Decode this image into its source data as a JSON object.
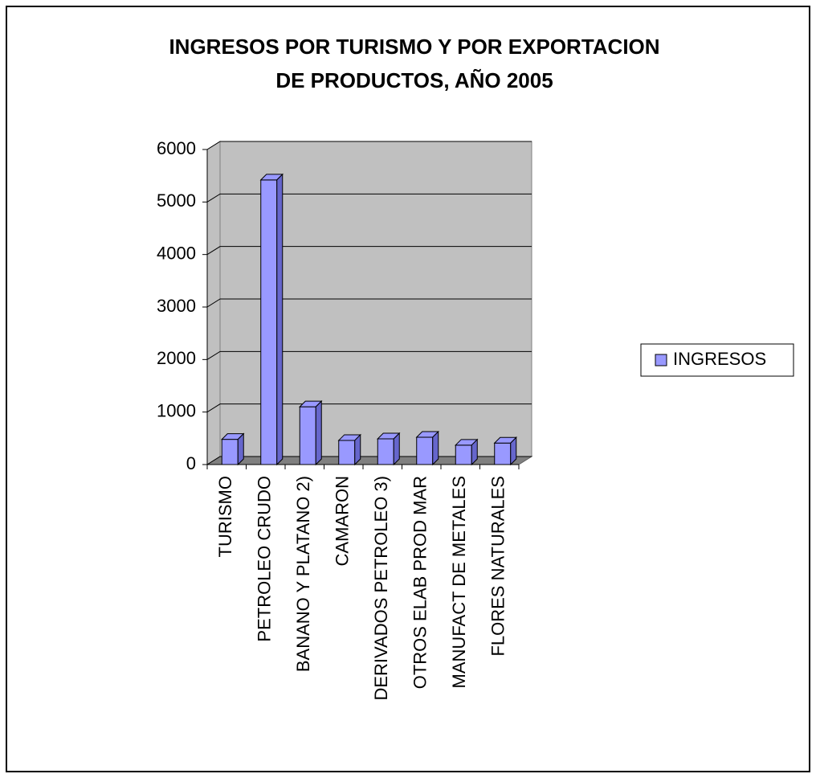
{
  "chart_data": {
    "type": "bar3d",
    "title": [
      "INGRESOS POR TURISMO Y POR EXPORTACION",
      "DE PRODUCTOS, AÑO 2005"
    ],
    "categories": [
      "TURISMO",
      "PETROLEO CRUDO",
      "BANANO Y PLATANO 2)",
      "CAMARON",
      "DERIVADOS PETROLEO 3)",
      "OTROS ELAB PROD MAR",
      "MANUFACT DE METALES",
      "FLORES NATURALES"
    ],
    "series": [
      {
        "name": "INGRESOS",
        "color": "#9999ff",
        "values": [
          480,
          5420,
          1100,
          460,
          490,
          520,
          370,
          410
        ]
      }
    ],
    "ylim": [
      0,
      6000
    ],
    "yticks": [
      0,
      1000,
      2000,
      3000,
      4000,
      5000,
      6000
    ],
    "grid": true,
    "legend": "right"
  }
}
